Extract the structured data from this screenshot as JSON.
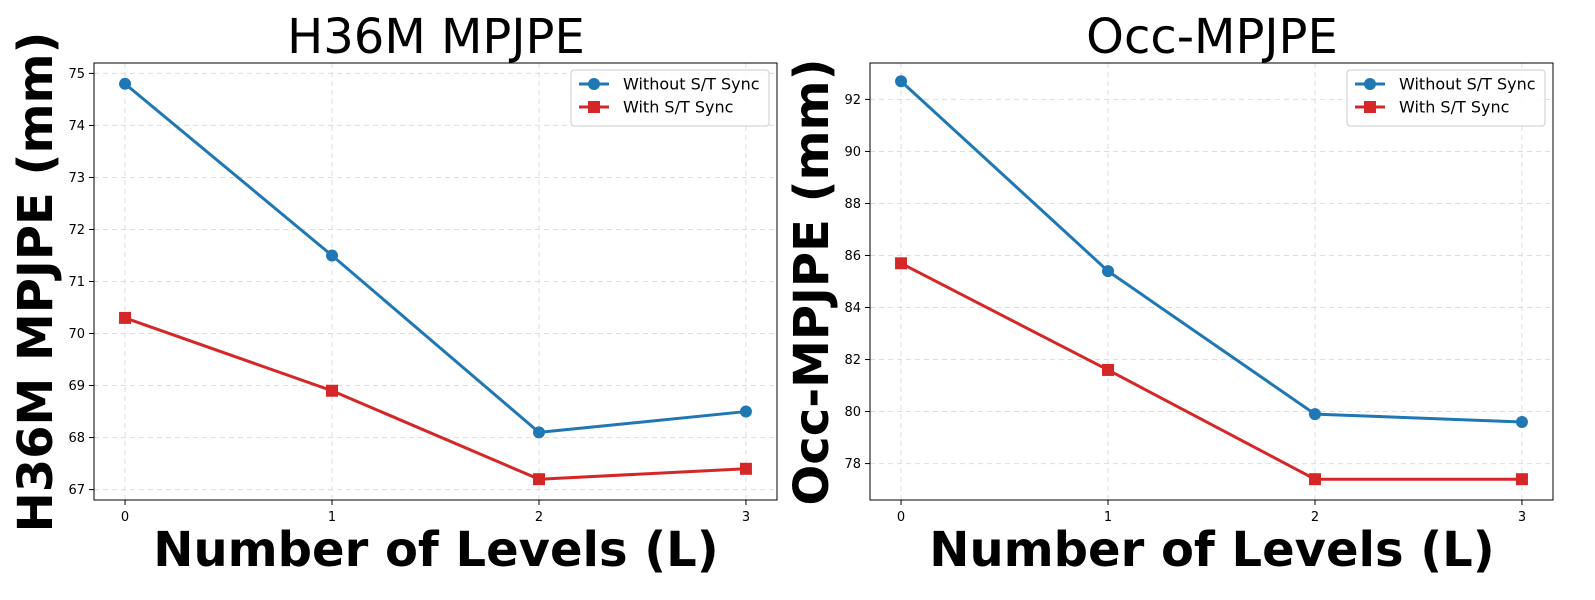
{
  "chart_data": [
    {
      "type": "line",
      "title": "H36M MPJPE",
      "xlabel": "Number of Levels (L)",
      "ylabel": "H36M MPJPE (mm)",
      "x": [
        0,
        1,
        2,
        3
      ],
      "xticks": [
        "0",
        "1",
        "2",
        "3"
      ],
      "xlim": [
        -0.15,
        3.15
      ],
      "ylim": [
        66.8,
        75.2
      ],
      "yticks": [
        67,
        68,
        69,
        70,
        71,
        72,
        73,
        74,
        75
      ],
      "grid": true,
      "legend_position": "top-right",
      "series": [
        {
          "name": "Without S/T Sync",
          "values": [
            74.8,
            71.5,
            68.1,
            68.5
          ],
          "color": "#1f77b4",
          "marker": "circle"
        },
        {
          "name": "With S/T Sync",
          "values": [
            70.3,
            68.9,
            67.2,
            67.4
          ],
          "color": "#d62728",
          "marker": "square"
        }
      ]
    },
    {
      "type": "line",
      "title": "Occ-MPJPE",
      "xlabel": "Number of Levels (L)",
      "ylabel": "Occ-MPJPE (mm)",
      "x": [
        0,
        1,
        2,
        3
      ],
      "xticks": [
        "0",
        "1",
        "2",
        "3"
      ],
      "xlim": [
        -0.15,
        3.15
      ],
      "ylim": [
        76.6,
        93.4
      ],
      "yticks": [
        78,
        80,
        82,
        84,
        86,
        88,
        90,
        92
      ],
      "grid": true,
      "legend_position": "top-right",
      "series": [
        {
          "name": "Without S/T Sync",
          "values": [
            92.7,
            85.4,
            79.9,
            79.6
          ],
          "color": "#1f77b4",
          "marker": "circle"
        },
        {
          "name": "With S/T Sync",
          "values": [
            85.7,
            81.6,
            77.4,
            77.4
          ],
          "color": "#d62728",
          "marker": "square"
        }
      ]
    }
  ]
}
